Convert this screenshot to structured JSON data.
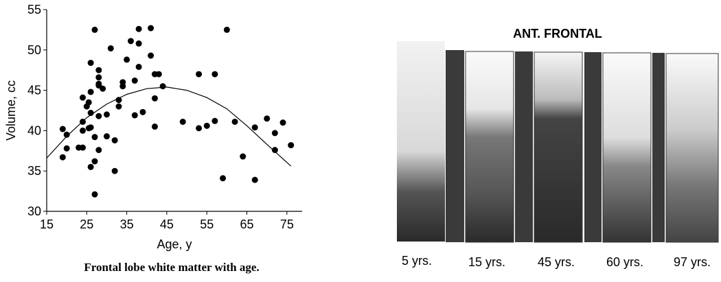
{
  "chart_data": {
    "type": "scatter",
    "xlabel": "Age, y",
    "ylabel": "Volume, cc",
    "caption": "Frontal lobe white matter with age.",
    "color": "#000000",
    "xlim": [
      15,
      80
    ],
    "ylim": [
      30,
      55
    ],
    "xticks": [
      15,
      25,
      35,
      45,
      55,
      65,
      75
    ],
    "yticks": [
      30,
      35,
      40,
      45,
      50,
      55
    ],
    "x": [
      19,
      19,
      20,
      20,
      23,
      24,
      24,
      24,
      24,
      25,
      25.5,
      25.5,
      26,
      26,
      26,
      26,
      26,
      27,
      27,
      27,
      27,
      28,
      28,
      28,
      28,
      28,
      28,
      29,
      30,
      30,
      31,
      32,
      32,
      33,
      33,
      34,
      34,
      35,
      36,
      37,
      37,
      38,
      38,
      38,
      39,
      41,
      41,
      42,
      42,
      42,
      43,
      44,
      49,
      53,
      53,
      55,
      57,
      57,
      59,
      60,
      62,
      64,
      67,
      67,
      70,
      72,
      72,
      74,
      76
    ],
    "values": [
      40.2,
      36.7,
      39.5,
      37.8,
      37.9,
      37.9,
      44.1,
      40,
      41.1,
      43,
      43.5,
      40.3,
      42.2,
      40.4,
      48.4,
      44.8,
      35.5,
      52.5,
      32.1,
      36.2,
      39.2,
      46.6,
      47.5,
      45.8,
      45.6,
      41.8,
      37.6,
      45.2,
      42,
      39.3,
      50.2,
      38.8,
      35,
      43,
      43.8,
      46,
      45.5,
      48.8,
      51.1,
      41.9,
      46.2,
      47.9,
      50.8,
      52.6,
      42.3,
      52.7,
      49.3,
      44,
      40.5,
      47,
      47,
      45.5,
      41.1,
      40.3,
      47,
      40.6,
      47,
      41.2,
      34.1,
      52.5,
      41.1,
      36.8,
      40.4,
      33.9,
      41.5,
      39.7,
      37.6,
      41,
      38.2
    ],
    "fit": {
      "x": [
        15,
        20,
        25,
        30,
        35,
        40,
        45,
        50,
        55,
        60,
        65,
        70,
        76
      ],
      "values": [
        36.6,
        39.3,
        41.6,
        43.3,
        44.5,
        45.2,
        45.4,
        45.0,
        44.1,
        42.7,
        40.6,
        38.3,
        35.6
      ]
    }
  },
  "figure": {
    "title": "ANT. FRONTAL",
    "labels": [
      "5 yrs.",
      "15 yrs.",
      "45 yrs.",
      "60 yrs.",
      "97 yrs."
    ]
  }
}
